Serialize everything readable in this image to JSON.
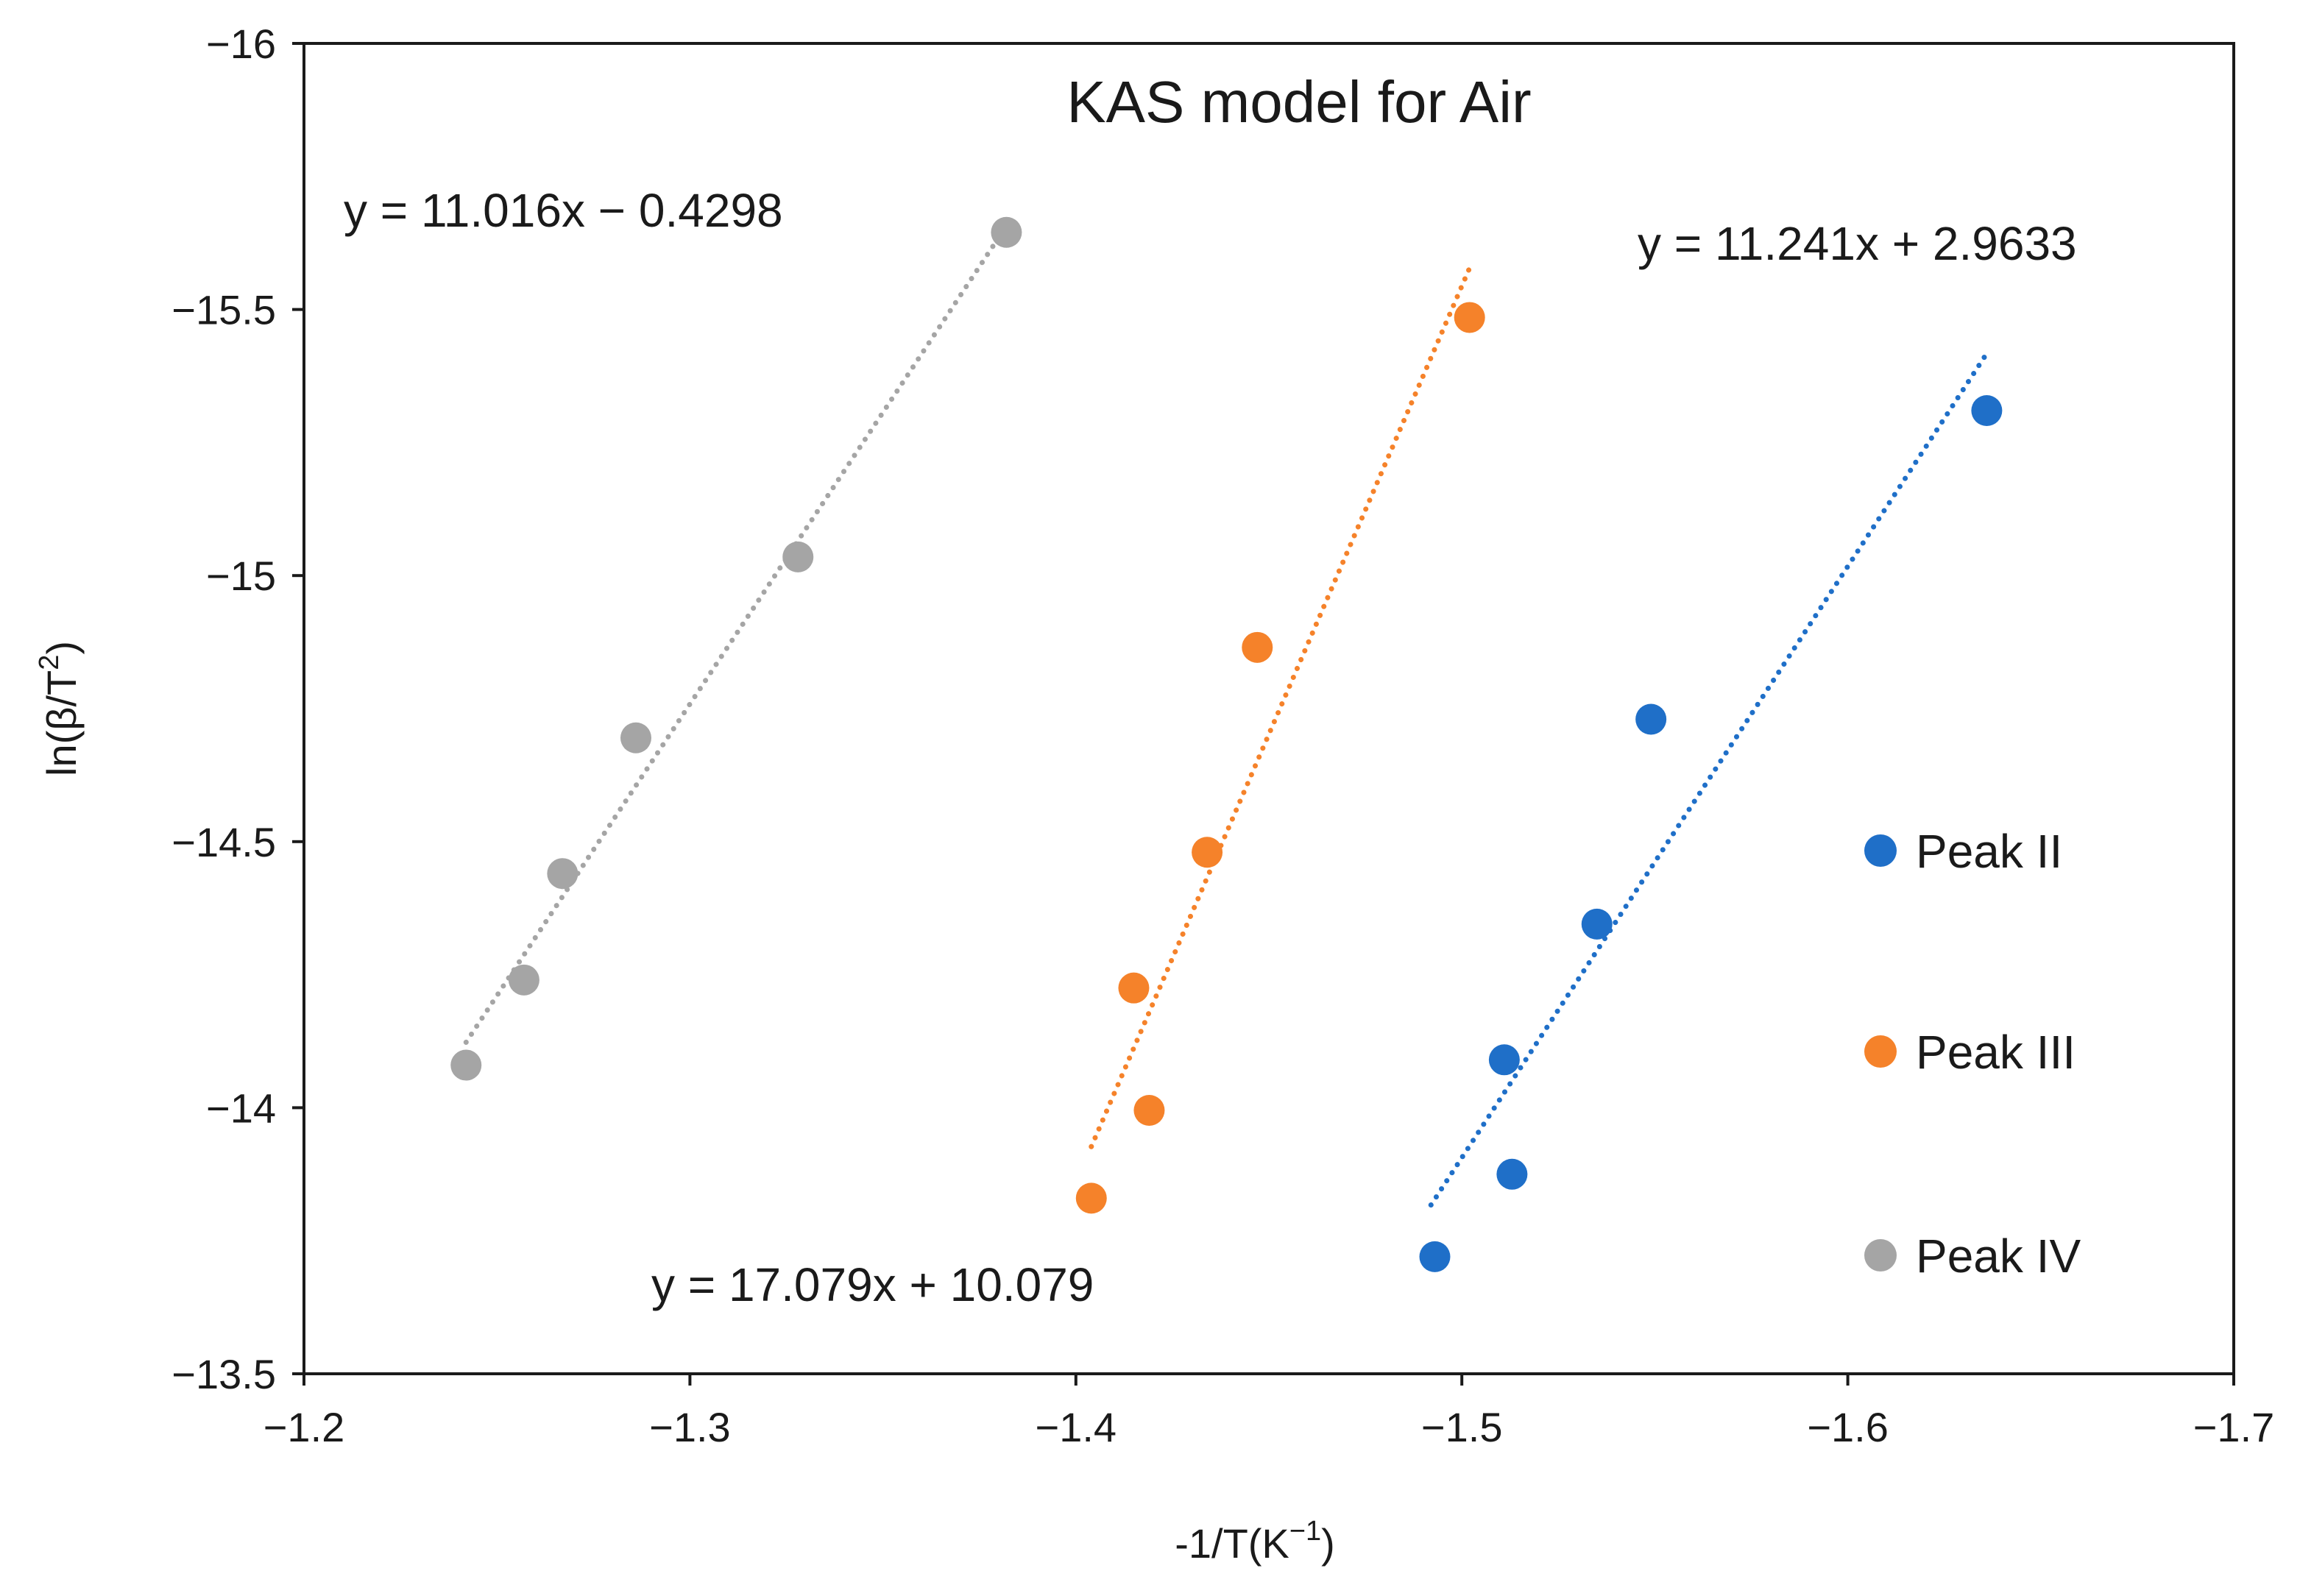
{
  "chart_data": {
    "type": "scatter",
    "title": "KAS model for Air",
    "xlabel": "-1/T(K",
    "xlabel_sup": "−1",
    "xlabel_end": ")",
    "ylabel": "ln(β/T",
    "ylabel_sup": "2",
    "ylabel_end": ")",
    "xlim": [
      -1.2,
      -1.7
    ],
    "ylim": [
      -13.5,
      -16
    ],
    "x_ticks": [
      -1.2,
      -1.3,
      -1.4,
      -1.5,
      -1.6,
      -1.7
    ],
    "x_tick_labels": [
      "−1.2",
      "−1.3",
      "−1.4",
      "−1.5",
      "−1.6",
      "−1.7"
    ],
    "y_ticks": [
      -16,
      -15.5,
      -15,
      -14.5,
      -14,
      -13.5
    ],
    "y_tick_labels": [
      "−16",
      "−15.5",
      "−15",
      "−14.5",
      "−14",
      "−13.5"
    ],
    "grid": false,
    "legend_position": "right",
    "series": [
      {
        "name": "Peak II",
        "color": "#1f6fc8",
        "x": [
          -1.493,
          -1.513,
          -1.511,
          -1.535,
          -1.549,
          -1.636
        ],
        "y": [
          -13.72,
          -13.875,
          -14.09,
          -14.345,
          -14.73,
          -15.31
        ],
        "trendline": {
          "label": "y = 11.241x + 2.9633",
          "x_range": [
            -1.492,
            -1.636
          ]
        }
      },
      {
        "name": "Peak III",
        "color": "#f5822a",
        "x": [
          -1.404,
          -1.419,
          -1.415,
          -1.434,
          -1.447,
          -1.502
        ],
        "y": [
          -13.83,
          -13.995,
          -14.225,
          -14.48,
          -14.865,
          -15.485
        ],
        "trendline": {
          "label": "y = 17.079x + 10.079",
          "x_range": [
            -1.404,
            -1.502
          ]
        }
      },
      {
        "name": "Peak IV",
        "color": "#a5a5a5",
        "x": [
          -1.242,
          -1.257,
          -1.267,
          -1.286,
          -1.328,
          -1.382
        ],
        "y": [
          -14.08,
          -14.24,
          -14.44,
          -14.695,
          -15.035,
          -15.645
        ],
        "trendline": {
          "label": "y = 11.016x − 0.4298",
          "x_range": [
            -1.242,
            -1.38
          ]
        }
      }
    ]
  }
}
